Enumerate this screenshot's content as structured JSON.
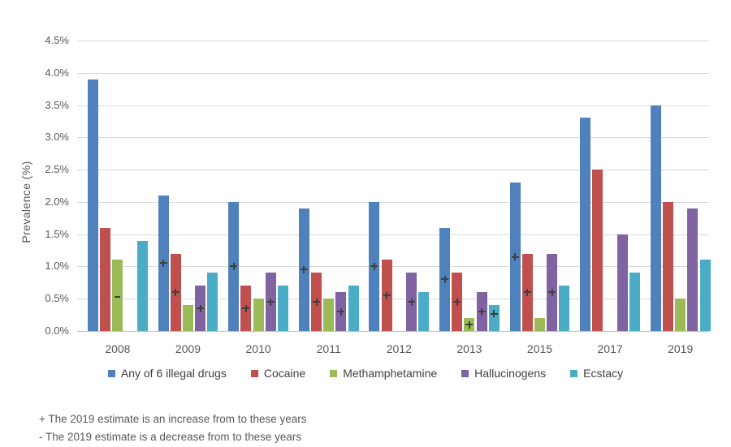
{
  "chart_data": {
    "type": "bar",
    "title": "",
    "ylabel": "Prevalence (%)",
    "xlabel": "",
    "y_axis": {
      "min": 0,
      "max": 4.5,
      "step": 0.5,
      "tick_suffix": "%",
      "tick_decimals": 1
    },
    "grid": true,
    "legend_position": "bottom",
    "categories": [
      "2008",
      "2009",
      "2010",
      "2011",
      "2012",
      "2013",
      "2015",
      "2017",
      "2019"
    ],
    "series": [
      {
        "name": "Any of 6 illegal drugs",
        "color": "#4F81BD",
        "values": [
          3.9,
          2.1,
          2.0,
          1.9,
          2.0,
          1.6,
          2.3,
          3.3,
          3.5
        ],
        "markers": [
          null,
          {
            "sign": "+",
            "at": 1.05
          },
          {
            "sign": "+",
            "at": 1.0
          },
          {
            "sign": "+",
            "at": 0.95
          },
          {
            "sign": "+",
            "at": 1.0
          },
          {
            "sign": "+",
            "at": 0.8
          },
          {
            "sign": "+",
            "at": 1.15
          },
          null,
          null
        ]
      },
      {
        "name": "Cocaine",
        "color": "#C0504D",
        "values": [
          1.6,
          1.2,
          0.7,
          0.9,
          1.1,
          0.9,
          1.2,
          2.5,
          2.0
        ],
        "markers": [
          null,
          {
            "sign": "+",
            "at": 0.6
          },
          {
            "sign": "+",
            "at": 0.35
          },
          {
            "sign": "+",
            "at": 0.45
          },
          {
            "sign": "+",
            "at": 0.55
          },
          {
            "sign": "+",
            "at": 0.45
          },
          {
            "sign": "+",
            "at": 0.6
          },
          null,
          null
        ]
      },
      {
        "name": "Methamphetamine",
        "color": "#9BBB59",
        "values": [
          1.1,
          0.4,
          0.5,
          0.5,
          null,
          0.2,
          0.2,
          null,
          0.5
        ],
        "markers": [
          {
            "sign": "-",
            "at": 0.53
          },
          null,
          null,
          null,
          null,
          {
            "sign": "+",
            "at": 0.1
          },
          null,
          null,
          null
        ]
      },
      {
        "name": "Hallucinogens",
        "color": "#8064A2",
        "values": [
          null,
          0.7,
          0.9,
          0.6,
          0.9,
          0.6,
          1.2,
          1.5,
          1.9
        ],
        "markers": [
          null,
          {
            "sign": "+",
            "at": 0.35
          },
          {
            "sign": "+",
            "at": 0.45
          },
          {
            "sign": "+",
            "at": 0.3
          },
          {
            "sign": "+",
            "at": 0.45
          },
          {
            "sign": "+",
            "at": 0.3
          },
          {
            "sign": "+",
            "at": 0.6
          },
          null,
          null
        ]
      },
      {
        "name": "Ecstacy",
        "color": "#4BACC6",
        "values": [
          1.4,
          0.9,
          0.7,
          0.7,
          0.6,
          0.4,
          0.7,
          0.9,
          1.1
        ],
        "markers": [
          null,
          null,
          null,
          null,
          null,
          {
            "sign": "+",
            "at": 0.27
          },
          null,
          null,
          null
        ]
      }
    ],
    "footnotes": [
      "+ The 2019 estimate is an increase from to these years",
      "- The 2019 estimate is a decrease from to these years"
    ],
    "colors": {
      "gridline": "#D9D9D9",
      "axis_line": "#BFBFBF",
      "tick_text": "#595959",
      "legend_text": "#404040",
      "marker": "#3F3F3F",
      "background": "#FFFFFF"
    }
  }
}
